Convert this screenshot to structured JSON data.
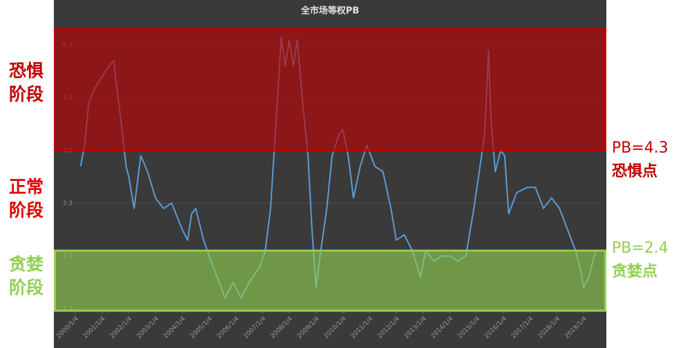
{
  "chart_data": {
    "type": "line",
    "title": "全市场等权PB",
    "x": [
      2000.2,
      2000.35,
      2000.5,
      2000.75,
      2001.0,
      2001.25,
      2001.45,
      2001.5,
      2001.7,
      2001.9,
      2002.0,
      2002.2,
      2002.45,
      2002.7,
      2003.0,
      2003.3,
      2003.6,
      2004.0,
      2004.2,
      2004.35,
      2004.5,
      2004.8,
      2005.0,
      2005.3,
      2005.6,
      2005.9,
      2006.2,
      2006.5,
      2006.9,
      2007.1,
      2007.3,
      2007.5,
      2007.7,
      2007.85,
      2008.0,
      2008.15,
      2008.3,
      2008.5,
      2008.7,
      2008.85,
      2009.0,
      2009.15,
      2009.4,
      2009.6,
      2009.85,
      2010.0,
      2010.2,
      2010.4,
      2010.65,
      2010.9,
      2011.2,
      2011.5,
      2011.8,
      2012.0,
      2012.3,
      2012.6,
      2012.9,
      2013.1,
      2013.4,
      2013.7,
      2014.0,
      2014.3,
      2014.6,
      2014.9,
      2015.1,
      2015.3,
      2015.45,
      2015.55,
      2015.7,
      2015.9,
      2016.05,
      2016.2,
      2016.5,
      2016.9,
      2017.2,
      2017.5,
      2017.8,
      2018.1,
      2018.4,
      2018.7,
      2018.9,
      2019.0,
      2019.2,
      2019.35,
      2019.45
    ],
    "series": [
      {
        "color": "#5b9bd5",
        "values": [
          4.0,
          4.4,
          5.2,
          5.5,
          5.7,
          5.9,
          6.0,
          5.7,
          4.9,
          4.0,
          3.8,
          3.2,
          4.2,
          3.9,
          3.4,
          3.2,
          3.3,
          2.8,
          2.6,
          3.1,
          3.2,
          2.6,
          2.3,
          1.9,
          1.5,
          1.8,
          1.5,
          1.8,
          2.1,
          2.4,
          3.2,
          4.8,
          6.45,
          5.9,
          6.4,
          5.9,
          6.4,
          5.2,
          4.2,
          2.8,
          1.7,
          2.3,
          3.2,
          4.2,
          4.6,
          4.7,
          4.2,
          3.4,
          4.0,
          4.4,
          4.0,
          3.9,
          3.2,
          2.6,
          2.7,
          2.4,
          1.9,
          2.4,
          2.2,
          2.3,
          2.3,
          2.2,
          2.3,
          3.2,
          3.9,
          4.6,
          6.2,
          4.8,
          3.9,
          4.3,
          4.2,
          3.1,
          3.5,
          3.6,
          3.6,
          3.2,
          3.4,
          3.2,
          2.8,
          2.4,
          2.0,
          1.7,
          1.9,
          2.2,
          2.4
        ]
      }
    ],
    "xlim": [
      1999.2,
      2019.85
    ],
    "xticks": [
      {
        "value": 2000,
        "label": "2000/1/4"
      },
      {
        "value": 2001,
        "label": "2001/1/4"
      },
      {
        "value": 2002,
        "label": "2002/1/4"
      },
      {
        "value": 2003,
        "label": "2003/1/4"
      },
      {
        "value": 2004,
        "label": "2004/1/4"
      },
      {
        "value": 2005,
        "label": "2005/1/4"
      },
      {
        "value": 2006,
        "label": "2006/1/4"
      },
      {
        "value": 2007,
        "label": "2007/1/4"
      },
      {
        "value": 2008,
        "label": "2008/1/4"
      },
      {
        "value": 2009,
        "label": "2009/1/4"
      },
      {
        "value": 2010,
        "label": "2010/1/4"
      },
      {
        "value": 2011,
        "label": "2011/1/4"
      },
      {
        "value": 2012,
        "label": "2012/1/4"
      },
      {
        "value": 2013,
        "label": "2013/1/4"
      },
      {
        "value": 2014,
        "label": "2014/1/4"
      },
      {
        "value": 2015,
        "label": "2015/1/4"
      },
      {
        "value": 2016,
        "label": "2016/1/4"
      },
      {
        "value": 2017,
        "label": "2017/1/4"
      },
      {
        "value": 2018,
        "label": "2018/1/4"
      },
      {
        "value": 2019,
        "label": "2019/1/4"
      }
    ],
    "ylim": [
      1.3,
      6.5
    ],
    "yticks": [
      1.3,
      2.3,
      3.3,
      4.3,
      5.3,
      6.3
    ],
    "grid": true,
    "bands": [
      {
        "value": 4.3,
        "side": "above",
        "color": "#c00000",
        "label": "PB=4.3",
        "note": "恐惧点",
        "stage": [
          "恐惧",
          "阶段"
        ]
      },
      {
        "value": 2.4,
        "side": "below",
        "color": "#92d050",
        "label": "PB=2.4",
        "note": "贪婪点",
        "stage": [
          "贪婪",
          "阶段"
        ]
      }
    ],
    "middle_stage": {
      "color": "#e00000",
      "text": [
        "正常",
        "阶段"
      ]
    }
  }
}
